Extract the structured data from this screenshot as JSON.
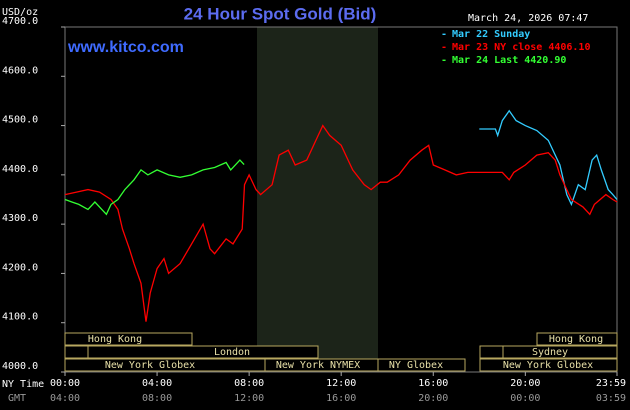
{
  "chart_data": {
    "type": "line",
    "title": "24 Hour Spot Gold (Bid)",
    "website": "www.kitco.com",
    "timestamp": "March 24, 2026 07:47",
    "y_unit": "USD/oz",
    "x_label_primary": "NY Time",
    "x_label_secondary": "GMT",
    "xlim": [
      0,
      23.983
    ],
    "ylim": [
      4000,
      4700
    ],
    "yticks": [
      {
        "value": 4000,
        "label": "4000.0"
      },
      {
        "value": 4100,
        "label": "4100.0"
      },
      {
        "value": 4200,
        "label": "4200.0"
      },
      {
        "value": 4300,
        "label": "4300.0"
      },
      {
        "value": 4400,
        "label": "4400.0"
      },
      {
        "value": 4500,
        "label": "4500.0"
      },
      {
        "value": 4600,
        "label": "4600.0"
      },
      {
        "value": 4700,
        "label": "4700.0"
      }
    ],
    "xticks": [
      {
        "value": 0,
        "label": "00:00"
      },
      {
        "value": 4,
        "label": "04:00"
      },
      {
        "value": 8,
        "label": "08:00"
      },
      {
        "value": 12,
        "label": "12:00"
      },
      {
        "value": 16,
        "label": "16:00"
      },
      {
        "value": 20,
        "label": "20:00"
      },
      {
        "value": 23.983,
        "label": "23:59"
      }
    ],
    "xticks_secondary": [
      "04:00",
      "08:00",
      "12:00",
      "16:00",
      "20:00",
      "00:00",
      "03:59"
    ],
    "sessions": [
      "Hong Kong",
      "London",
      "New York Globex",
      "New York NYMEX",
      "NY Globex",
      "Hong Kong",
      "Sydney",
      "New York Globex"
    ],
    "series": [
      {
        "name": "Mar 22 Sunday",
        "color": "#33ccff",
        "x": [
          18,
          18.7,
          18.8,
          19,
          19.3,
          19.6,
          20,
          20.5,
          21,
          21.5,
          21.8,
          22,
          22.3,
          22.6,
          22.9,
          23.1,
          23.3,
          23.6,
          23.8,
          23.983
        ],
        "values": [
          4493,
          4493,
          4480,
          4510,
          4530,
          4510,
          4500,
          4490,
          4470,
          4420,
          4360,
          4340,
          4380,
          4370,
          4430,
          4440,
          4410,
          4370,
          4360,
          4350
        ]
      },
      {
        "name": "Mar 23 NY close 4406.10",
        "color": "#ff0000",
        "x": [
          0,
          0.5,
          1,
          1.5,
          2,
          2.3,
          2.5,
          2.8,
          3,
          3.3,
          3.52,
          3.7,
          4,
          4.3,
          4.5,
          5,
          5.5,
          6,
          6.3,
          6.5,
          7,
          7.3,
          7.7,
          7.8,
          8,
          8.3,
          8.5,
          9,
          9.3,
          9.7,
          10,
          10.5,
          11,
          11.2,
          11.5,
          12,
          12.3,
          12.5,
          13,
          13.3,
          13.7,
          14,
          14.5,
          15,
          15.5,
          15.8,
          16,
          16.5,
          17,
          17.5,
          18,
          19,
          19.3,
          19.5,
          20,
          20.5,
          21,
          21.3,
          21.5,
          22,
          22.5,
          22.8,
          23,
          23.5,
          23.8,
          23.983
        ],
        "values": [
          4360,
          4365,
          4370,
          4365,
          4350,
          4330,
          4290,
          4250,
          4220,
          4180,
          4102,
          4160,
          4210,
          4230,
          4200,
          4220,
          4260,
          4300,
          4250,
          4240,
          4270,
          4260,
          4290,
          4380,
          4400,
          4370,
          4360,
          4380,
          4440,
          4450,
          4420,
          4430,
          4480,
          4500,
          4480,
          4460,
          4430,
          4410,
          4380,
          4370,
          4385,
          4385,
          4400,
          4430,
          4450,
          4460,
          4420,
          4410,
          4400,
          4405,
          4405,
          4405,
          4390,
          4405,
          4420,
          4440,
          4445,
          4430,
          4400,
          4350,
          4335,
          4320,
          4340,
          4360,
          4350,
          4345
        ]
      },
      {
        "name": "Mar 24 Last 4420.90",
        "color": "#33ff33",
        "x": [
          0,
          0.3,
          0.6,
          1,
          1.3,
          1.6,
          1.8,
          2,
          2.3,
          2.6,
          3,
          3.3,
          3.6,
          4,
          4.5,
          5,
          5.5,
          6,
          6.5,
          7,
          7.2,
          7.6,
          7.78
        ],
        "values": [
          4350,
          4345,
          4340,
          4330,
          4345,
          4330,
          4320,
          4340,
          4350,
          4370,
          4390,
          4410,
          4400,
          4410,
          4400,
          4395,
          4400,
          4410,
          4415,
          4425,
          4410,
          4430,
          4420.9
        ]
      }
    ]
  }
}
